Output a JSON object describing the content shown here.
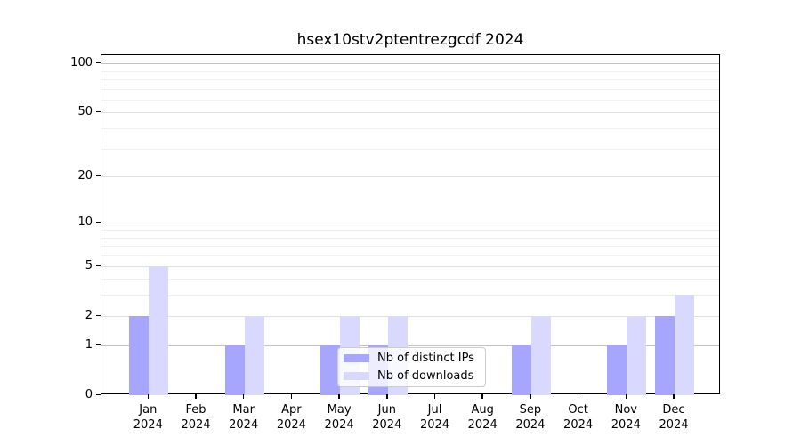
{
  "chart_data": {
    "type": "bar",
    "title": "hsex10stv2ptentrezgcdf 2024",
    "categories": [
      "Jan",
      "Feb",
      "Mar",
      "Apr",
      "May",
      "Jun",
      "Jul",
      "Aug",
      "Sep",
      "Oct",
      "Nov",
      "Dec"
    ],
    "category_year": "2024",
    "series": [
      {
        "name": "Nb of distinct IPs",
        "color": "#a6a6ff",
        "values": [
          2,
          0,
          1,
          0,
          1,
          1,
          0,
          0,
          1,
          0,
          1,
          2
        ]
      },
      {
        "name": "Nb of downloads",
        "color": "#d9d9ff",
        "values": [
          5,
          0,
          2,
          0,
          2,
          2,
          0,
          0,
          2,
          0,
          2,
          3
        ]
      }
    ],
    "xlabel": "",
    "ylabel": "",
    "yscale": "log1p",
    "ylim": [
      0,
      112
    ],
    "y_major_ticks": [
      0,
      1,
      2,
      5,
      10,
      20,
      50,
      100
    ],
    "y_decade_gridlines": [
      1,
      10,
      100
    ],
    "y_sub_gridlines": [
      2,
      5,
      20,
      50
    ],
    "y_minor_gridlines": [
      3,
      4,
      6,
      7,
      8,
      9,
      30,
      40,
      60,
      70,
      80,
      90
    ],
    "grid": true,
    "legend_position": "lower center"
  }
}
